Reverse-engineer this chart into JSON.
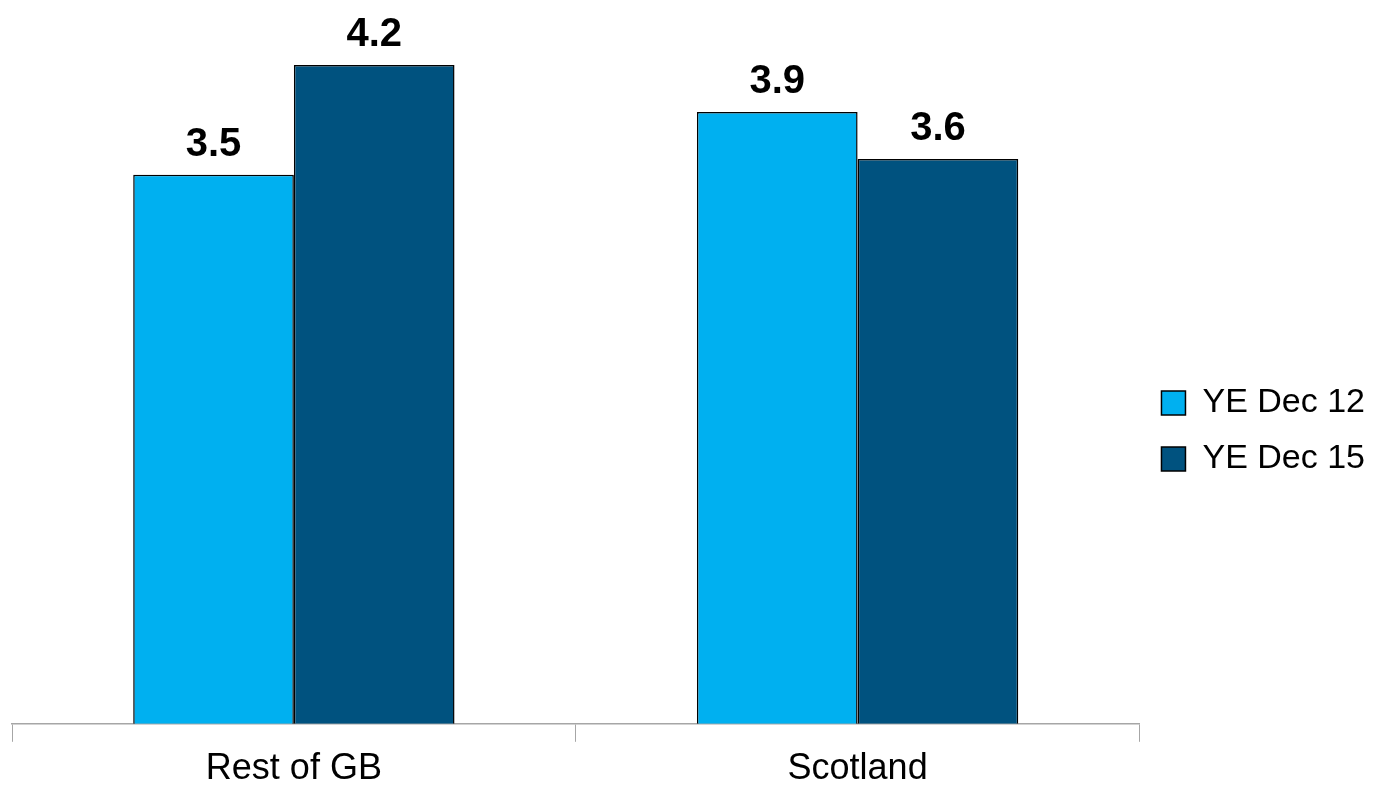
{
  "chart_data": {
    "type": "bar",
    "categories": [
      "Rest of GB",
      "Scotland"
    ],
    "series": [
      {
        "name": "YE Dec 12",
        "color": "#00b0f0",
        "values": [
          3.5,
          3.9
        ]
      },
      {
        "name": "YE Dec 15",
        "color": "#00527f",
        "values": [
          4.2,
          3.6
        ]
      }
    ],
    "ylim": [
      0,
      4.2
    ],
    "data_labels": true,
    "legend": "right",
    "tick_labels": "x",
    "grid": false
  }
}
